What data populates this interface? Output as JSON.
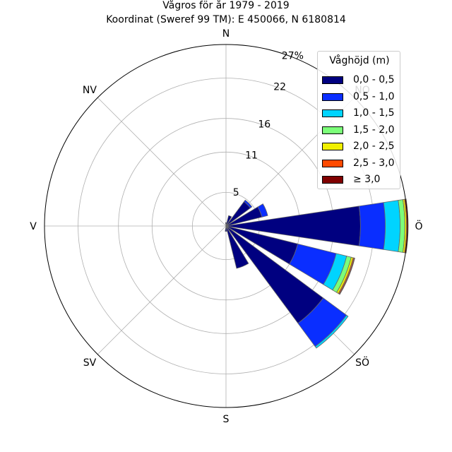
{
  "title": "Vågros för år 1979 - 2019",
  "subtitle": "Koordinat (Sweref 99 TM): E 450066, N 6180814",
  "chart_data": {
    "type": "windrose",
    "title": "Vågros för år 1979 - 2019",
    "subtitle": "Koordinat (Sweref 99 TM): E 450066, N 6180814",
    "legend_title": "Våghöjd (m)",
    "legend_position": "top-right",
    "grid": true,
    "rmax": 27,
    "ring_ticks": [
      {
        "value": 5,
        "label": "5"
      },
      {
        "value": 11,
        "label": "11"
      },
      {
        "value": 16,
        "label": "16"
      },
      {
        "value": 22,
        "label": "22"
      },
      {
        "value": 27,
        "label": "27%"
      }
    ],
    "direction_labels": [
      {
        "angle": 0,
        "label": "N"
      },
      {
        "angle": 45,
        "label": "NO"
      },
      {
        "angle": 90,
        "label": "Ö"
      },
      {
        "angle": 135,
        "label": "SÖ"
      },
      {
        "angle": 180,
        "label": "S"
      },
      {
        "angle": 225,
        "label": "SV"
      },
      {
        "angle": 270,
        "label": "V"
      },
      {
        "angle": 315,
        "label": "NV"
      }
    ],
    "bins": [
      {
        "label": "0,0 - 0,5",
        "color": "#000080"
      },
      {
        "label": "0,5 - 1,0",
        "color": "#0a2eff"
      },
      {
        "label": "1,0 - 1,5",
        "color": "#00d4ff"
      },
      {
        "label": "1,5 - 2,0",
        "color": "#7cff79"
      },
      {
        "label": "2,0 - 2,5",
        "color": "#f1f000"
      },
      {
        "label": "2,5 - 3,0",
        "color": "#ff4a00"
      },
      {
        "label": "≥ 3,0",
        "color": "#800000"
      }
    ],
    "sectors": [
      {
        "direction": 0,
        "values": [
          0.5,
          0,
          0,
          0,
          0,
          0,
          0
        ]
      },
      {
        "direction": 22.5,
        "values": [
          1.6,
          0,
          0,
          0,
          0,
          0,
          0
        ]
      },
      {
        "direction": 45,
        "values": [
          4.5,
          0.3,
          0,
          0,
          0,
          0,
          0
        ]
      },
      {
        "direction": 67.5,
        "values": [
          5.5,
          0.9,
          0,
          0,
          0,
          0,
          0
        ]
      },
      {
        "direction": 90,
        "values": [
          20,
          3.7,
          2.2,
          0.7,
          0.25,
          0.15,
          0.1
        ]
      },
      {
        "direction": 112.5,
        "values": [
          11,
          5.9,
          1.6,
          0.7,
          0.3,
          0.15,
          0.1
        ]
      },
      {
        "direction": 135,
        "values": [
          18,
          4.3,
          0.3,
          0,
          0,
          0,
          0
        ]
      },
      {
        "direction": 157.5,
        "values": [
          6.5,
          0,
          0,
          0,
          0,
          0,
          0
        ]
      },
      {
        "direction": 180,
        "values": [
          0.8,
          0,
          0,
          0,
          0,
          0,
          0
        ]
      }
    ]
  }
}
